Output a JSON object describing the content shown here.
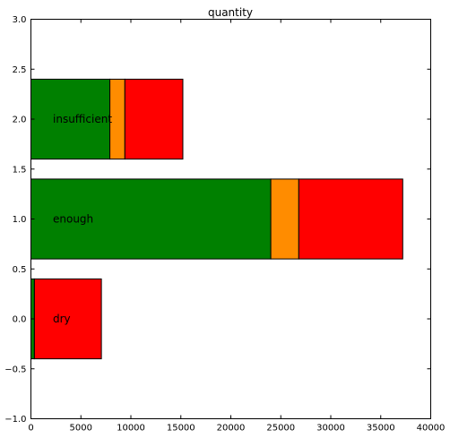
{
  "chart_data": {
    "type": "bar",
    "orientation": "horizontal",
    "stacked": true,
    "title": "quantity",
    "xlabel": "",
    "ylabel": "",
    "xlim": [
      0,
      40000
    ],
    "ylim": [
      -1.0,
      3.0
    ],
    "grid": false,
    "bar_height": 0.8,
    "x_ticks": [
      "0",
      "5000",
      "10000",
      "15000",
      "20000",
      "25000",
      "30000",
      "35000",
      "40000"
    ],
    "y_ticks": [
      "−1.0",
      "−0.5",
      "0.0",
      "0.5",
      "1.0",
      "1.5",
      "2.0",
      "2.5",
      "3.0"
    ],
    "categories": [
      "dry",
      "enough",
      "insufficient"
    ],
    "positions": [
      0,
      1,
      2
    ],
    "series": [
      {
        "color": "#008000",
        "values": [
          350,
          24000,
          7900
        ]
      },
      {
        "color": "#ff8c00",
        "values": [
          0,
          2800,
          1500
        ]
      },
      {
        "color": "#ff0000",
        "values": [
          6700,
          10400,
          5800
        ]
      }
    ]
  }
}
